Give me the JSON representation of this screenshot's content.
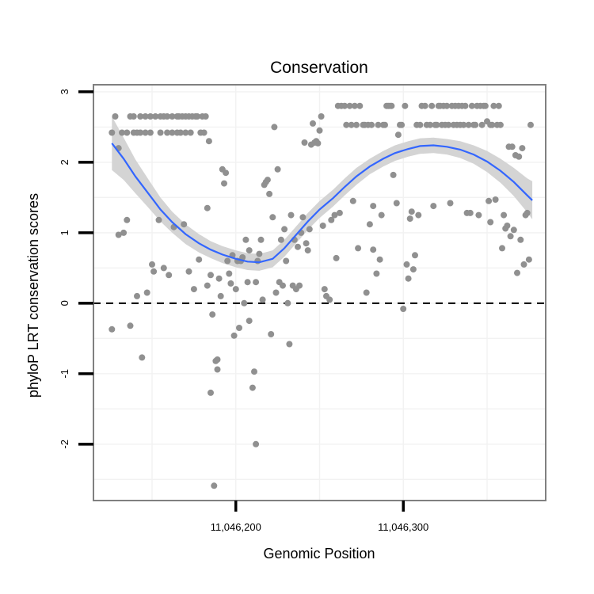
{
  "chart_data": {
    "type": "scatter",
    "title": "Conservation",
    "xlabel": "Genomic Position",
    "ylabel": "phyloP LRT conservation scores",
    "xlim": [
      11046115,
      11046385
    ],
    "ylim": [
      -2.8,
      3.1
    ],
    "x_ticks": [
      {
        "value": 11046200,
        "label": "11,046,200"
      },
      {
        "value": 11046300,
        "label": "11,046,300"
      }
    ],
    "y_ticks": [
      {
        "value": -2,
        "label": "-2"
      },
      {
        "value": -1,
        "label": "-1"
      },
      {
        "value": 0,
        "label": "0"
      },
      {
        "value": 1,
        "label": "1"
      },
      {
        "value": 2,
        "label": "2"
      },
      {
        "value": 3,
        "label": "3"
      }
    ],
    "reference_line": {
      "y": 0,
      "style": "dashed"
    },
    "colors": {
      "points": "#909090",
      "smooth": "#3366FF",
      "ribbon": "#d4d4d4",
      "panel_border": "#808080",
      "grid": "#f2f2f2"
    },
    "points": [
      [
        11046126,
        -0.37
      ],
      [
        11046126,
        2.42
      ],
      [
        11046128,
        2.65
      ],
      [
        11046130,
        2.2
      ],
      [
        11046130,
        0.97
      ],
      [
        11046132,
        2.42
      ],
      [
        11046133,
        1.0
      ],
      [
        11046135,
        1.18
      ],
      [
        11046135,
        2.42
      ],
      [
        11046137,
        2.65
      ],
      [
        11046137,
        -0.32
      ],
      [
        11046139,
        2.42
      ],
      [
        11046139,
        2.65
      ],
      [
        11046141,
        2.42
      ],
      [
        11046141,
        0.1
      ],
      [
        11046143,
        2.42
      ],
      [
        11046143,
        2.65
      ],
      [
        11046144,
        -0.77
      ],
      [
        11046146,
        2.42
      ],
      [
        11046146,
        2.65
      ],
      [
        11046147,
        0.15
      ],
      [
        11046149,
        2.42
      ],
      [
        11046149,
        2.65
      ],
      [
        11046150,
        0.55
      ],
      [
        11046151,
        0.45
      ],
      [
        11046152,
        2.65
      ],
      [
        11046154,
        1.18
      ],
      [
        11046155,
        2.42
      ],
      [
        11046155,
        2.65
      ],
      [
        11046157,
        2.65
      ],
      [
        11046157,
        0.5
      ],
      [
        11046159,
        2.42
      ],
      [
        11046159,
        2.65
      ],
      [
        11046160,
        0.4
      ],
      [
        11046162,
        2.42
      ],
      [
        11046162,
        2.65
      ],
      [
        11046163,
        1.08
      ],
      [
        11046165,
        2.42
      ],
      [
        11046165,
        2.65
      ],
      [
        11046166,
        2.65
      ],
      [
        11046167,
        2.42
      ],
      [
        11046168,
        2.65
      ],
      [
        11046169,
        1.12
      ],
      [
        11046170,
        2.65
      ],
      [
        11046170,
        2.42
      ],
      [
        11046172,
        2.65
      ],
      [
        11046172,
        0.45
      ],
      [
        11046173,
        2.42
      ],
      [
        11046174,
        2.65
      ],
      [
        11046175,
        0.2
      ],
      [
        11046176,
        2.65
      ],
      [
        11046177,
        2.65
      ],
      [
        11046178,
        0.62
      ],
      [
        11046179,
        2.42
      ],
      [
        11046180,
        2.65
      ],
      [
        11046181,
        2.42
      ],
      [
        11046182,
        2.65
      ],
      [
        11046183,
        0.25
      ],
      [
        11046183,
        1.35
      ],
      [
        11046184,
        2.3
      ],
      [
        11046185,
        -1.27
      ],
      [
        11046185,
        0.4
      ],
      [
        11046186,
        -0.16
      ],
      [
        11046187,
        -2.59
      ],
      [
        11046188,
        -0.82
      ],
      [
        11046189,
        -0.94
      ],
      [
        11046189,
        -0.8
      ],
      [
        11046190,
        0.35
      ],
      [
        11046191,
        0.1
      ],
      [
        11046192,
        1.9
      ],
      [
        11046193,
        1.7
      ],
      [
        11046194,
        1.85
      ],
      [
        11046195,
        0.6
      ],
      [
        11046196,
        0.42
      ],
      [
        11046197,
        0.28
      ],
      [
        11046198,
        0.68
      ],
      [
        11046199,
        -0.46
      ],
      [
        11046200,
        0.2
      ],
      [
        11046201,
        0.6
      ],
      [
        11046202,
        -0.35
      ],
      [
        11046203,
        0.6
      ],
      [
        11046204,
        0.65
      ],
      [
        11046205,
        0.0
      ],
      [
        11046206,
        0.9
      ],
      [
        11046207,
        0.3
      ],
      [
        11046208,
        -0.25
      ],
      [
        11046208,
        0.75
      ],
      [
        11046210,
        -1.2
      ],
      [
        11046211,
        -0.97
      ],
      [
        11046212,
        -2.0
      ],
      [
        11046212,
        0.3
      ],
      [
        11046213,
        0.6
      ],
      [
        11046214,
        0.7
      ],
      [
        11046215,
        0.9
      ],
      [
        11046216,
        0.05
      ],
      [
        11046217,
        1.68
      ],
      [
        11046218,
        1.72
      ],
      [
        11046219,
        1.75
      ],
      [
        11046220,
        1.55
      ],
      [
        11046221,
        -0.44
      ],
      [
        11046222,
        1.22
      ],
      [
        11046223,
        2.5
      ],
      [
        11046224,
        0.15
      ],
      [
        11046225,
        1.9
      ],
      [
        11046226,
        0.3
      ],
      [
        11046227,
        0.9
      ],
      [
        11046228,
        0.25
      ],
      [
        11046229,
        1.05
      ],
      [
        11046230,
        0.6
      ],
      [
        11046231,
        0.0
      ],
      [
        11046232,
        -0.58
      ],
      [
        11046233,
        1.25
      ],
      [
        11046234,
        0.25
      ],
      [
        11046235,
        0.9
      ],
      [
        11046236,
        0.2
      ],
      [
        11046237,
        0.8
      ],
      [
        11046238,
        0.25
      ],
      [
        11046239,
        1.0
      ],
      [
        11046240,
        1.22
      ],
      [
        11046241,
        2.28
      ],
      [
        11046242,
        0.85
      ],
      [
        11046243,
        0.75
      ],
      [
        11046244,
        1.05
      ],
      [
        11046245,
        2.25
      ],
      [
        11046246,
        2.55
      ],
      [
        11046247,
        2.28
      ],
      [
        11046248,
        2.3
      ],
      [
        11046249,
        2.27
      ],
      [
        11046250,
        2.45
      ],
      [
        11046251,
        2.65
      ],
      [
        11046252,
        1.1
      ],
      [
        11046253,
        0.2
      ],
      [
        11046254,
        0.1
      ],
      [
        11046256,
        0.05
      ],
      [
        11046257,
        1.18
      ],
      [
        11046259,
        1.25
      ],
      [
        11046260,
        0.64
      ],
      [
        11046261,
        2.8
      ],
      [
        11046262,
        1.28
      ],
      [
        11046263,
        2.8
      ],
      [
        11046265,
        2.8
      ],
      [
        11046266,
        2.53
      ],
      [
        11046268,
        2.8
      ],
      [
        11046269,
        2.53
      ],
      [
        11046270,
        1.45
      ],
      [
        11046271,
        2.8
      ],
      [
        11046272,
        2.53
      ],
      [
        11046273,
        0.78
      ],
      [
        11046274,
        2.8
      ],
      [
        11046276,
        2.53
      ],
      [
        11046277,
        2.53
      ],
      [
        11046278,
        0.15
      ],
      [
        11046279,
        2.53
      ],
      [
        11046280,
        1.12
      ],
      [
        11046281,
        2.53
      ],
      [
        11046282,
        0.76
      ],
      [
        11046282,
        1.38
      ],
      [
        11046284,
        0.42
      ],
      [
        11046285,
        2.53
      ],
      [
        11046286,
        0.62
      ],
      [
        11046287,
        1.25
      ],
      [
        11046288,
        2.53
      ],
      [
        11046289,
        2.53
      ],
      [
        11046290,
        2.8
      ],
      [
        11046291,
        2.8
      ],
      [
        11046292,
        2.8
      ],
      [
        11046293,
        2.8
      ],
      [
        11046294,
        1.82
      ],
      [
        11046296,
        1.42
      ],
      [
        11046297,
        2.39
      ],
      [
        11046298,
        2.53
      ],
      [
        11046299,
        2.53
      ],
      [
        11046300,
        -0.08
      ],
      [
        11046301,
        2.8
      ],
      [
        11046302,
        0.55
      ],
      [
        11046303,
        0.35
      ],
      [
        11046304,
        1.2
      ],
      [
        11046305,
        1.3
      ],
      [
        11046306,
        0.48
      ],
      [
        11046307,
        0.68
      ],
      [
        11046308,
        2.53
      ],
      [
        11046309,
        1.25
      ],
      [
        11046310,
        2.53
      ],
      [
        11046311,
        2.8
      ],
      [
        11046313,
        2.8
      ],
      [
        11046314,
        2.53
      ],
      [
        11046316,
        2.53
      ],
      [
        11046317,
        2.8
      ],
      [
        11046318,
        1.38
      ],
      [
        11046319,
        2.53
      ],
      [
        11046320,
        2.53
      ],
      [
        11046321,
        2.8
      ],
      [
        11046322,
        2.8
      ],
      [
        11046323,
        2.53
      ],
      [
        11046324,
        2.8
      ],
      [
        11046325,
        2.53
      ],
      [
        11046326,
        2.8
      ],
      [
        11046327,
        2.53
      ],
      [
        11046328,
        1.42
      ],
      [
        11046329,
        2.8
      ],
      [
        11046330,
        2.53
      ],
      [
        11046331,
        2.8
      ],
      [
        11046332,
        2.53
      ],
      [
        11046333,
        2.8
      ],
      [
        11046334,
        2.53
      ],
      [
        11046335,
        2.8
      ],
      [
        11046336,
        2.53
      ],
      [
        11046337,
        2.8
      ],
      [
        11046338,
        1.28
      ],
      [
        11046339,
        2.53
      ],
      [
        11046340,
        1.28
      ],
      [
        11046341,
        2.8
      ],
      [
        11046342,
        2.53
      ],
      [
        11046343,
        2.53
      ],
      [
        11046344,
        2.8
      ],
      [
        11046345,
        1.25
      ],
      [
        11046346,
        2.8
      ],
      [
        11046347,
        2.53
      ],
      [
        11046348,
        2.8
      ],
      [
        11046349,
        2.8
      ],
      [
        11046350,
        2.58
      ],
      [
        11046351,
        1.45
      ],
      [
        11046352,
        2.53
      ],
      [
        11046352,
        1.15
      ],
      [
        11046353,
        2.53
      ],
      [
        11046354,
        2.8
      ],
      [
        11046355,
        1.47
      ],
      [
        11046356,
        2.53
      ],
      [
        11046357,
        2.8
      ],
      [
        11046358,
        2.53
      ],
      [
        11046359,
        0.78
      ],
      [
        11046360,
        1.25
      ],
      [
        11046361,
        1.06
      ],
      [
        11046362,
        1.1
      ],
      [
        11046363,
        2.22
      ],
      [
        11046364,
        0.95
      ],
      [
        11046365,
        2.22
      ],
      [
        11046366,
        1.04
      ],
      [
        11046367,
        2.1
      ],
      [
        11046368,
        0.43
      ],
      [
        11046369,
        2.08
      ],
      [
        11046370,
        0.9
      ],
      [
        11046371,
        2.2
      ],
      [
        11046372,
        0.55
      ],
      [
        11046373,
        1.25
      ],
      [
        11046374,
        1.28
      ],
      [
        11046375,
        0.62
      ],
      [
        11046376,
        2.53
      ]
    ],
    "smooth": [
      [
        11046126,
        2.27
      ],
      [
        11046133,
        2.05
      ],
      [
        11046140,
        1.8
      ],
      [
        11046148,
        1.55
      ],
      [
        11046155,
        1.33
      ],
      [
        11046162,
        1.15
      ],
      [
        11046170,
        0.98
      ],
      [
        11046178,
        0.85
      ],
      [
        11046185,
        0.76
      ],
      [
        11046192,
        0.69
      ],
      [
        11046200,
        0.63
      ],
      [
        11046207,
        0.59
      ],
      [
        11046214,
        0.58
      ],
      [
        11046222,
        0.63
      ],
      [
        11046229,
        0.78
      ],
      [
        11046236,
        0.97
      ],
      [
        11046243,
        1.16
      ],
      [
        11046250,
        1.33
      ],
      [
        11046258,
        1.49
      ],
      [
        11046265,
        1.65
      ],
      [
        11046272,
        1.8
      ],
      [
        11046280,
        1.94
      ],
      [
        11046288,
        2.05
      ],
      [
        11046295,
        2.13
      ],
      [
        11046303,
        2.19
      ],
      [
        11046310,
        2.23
      ],
      [
        11046318,
        2.24
      ],
      [
        11046326,
        2.22
      ],
      [
        11046334,
        2.18
      ],
      [
        11046342,
        2.11
      ],
      [
        11046350,
        2.01
      ],
      [
        11046358,
        1.88
      ],
      [
        11046366,
        1.72
      ],
      [
        11046374,
        1.53
      ],
      [
        11046377,
        1.46
      ]
    ],
    "ribbon_halfwidth": [
      0.38,
      0.3,
      0.24,
      0.2,
      0.17,
      0.15,
      0.14,
      0.13,
      0.12,
      0.12,
      0.12,
      0.12,
      0.12,
      0.12,
      0.12,
      0.12,
      0.12,
      0.12,
      0.12,
      0.12,
      0.12,
      0.11,
      0.11,
      0.11,
      0.11,
      0.11,
      0.11,
      0.11,
      0.12,
      0.13,
      0.15,
      0.17,
      0.2,
      0.24,
      0.27
    ]
  }
}
